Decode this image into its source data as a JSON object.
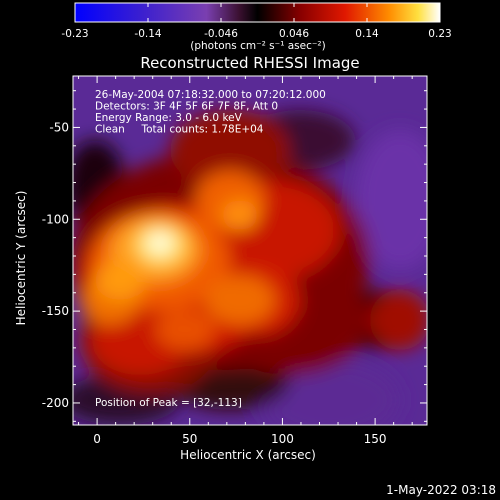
{
  "colorbar": {
    "ticks": [
      "-0.23",
      "-0.14",
      "-0.046",
      "0.046",
      "0.14",
      "0.23"
    ],
    "unit_label": "(photons cm⁻² s⁻¹ asec⁻²)",
    "range": [
      -0.23,
      0.23
    ]
  },
  "chart_data": {
    "type": "heatmap",
    "title": "Reconstructed RHESSI Image",
    "xlabel": "Heliocentric X (arcsec)",
    "ylabel": "Heliocentric Y (arcsec)",
    "xlim": [
      -13,
      178
    ],
    "ylim": [
      -212,
      -22
    ],
    "x_ticks": [
      0,
      50,
      100,
      150
    ],
    "y_ticks": [
      -50,
      -100,
      -150,
      -200
    ],
    "info_lines": [
      "26-May-2004 07:18:32.000 to 07:20:12.000",
      "Detectors: 3F 4F 5F 6F 7F 8F, Att 0",
      "Energy Range: 3.0 - 6.0 keV",
      "Clean     Total counts: 1.78E+04"
    ],
    "peak_label": "Position of Peak = [32,-113]",
    "peak_position": [
      32,
      -113
    ],
    "peak_value": 0.23,
    "colormap": "RHESSI color table (blue-purple-black-red-orange-yellow-white)"
  },
  "footer": {
    "date": "1-May-2022 03:18"
  }
}
